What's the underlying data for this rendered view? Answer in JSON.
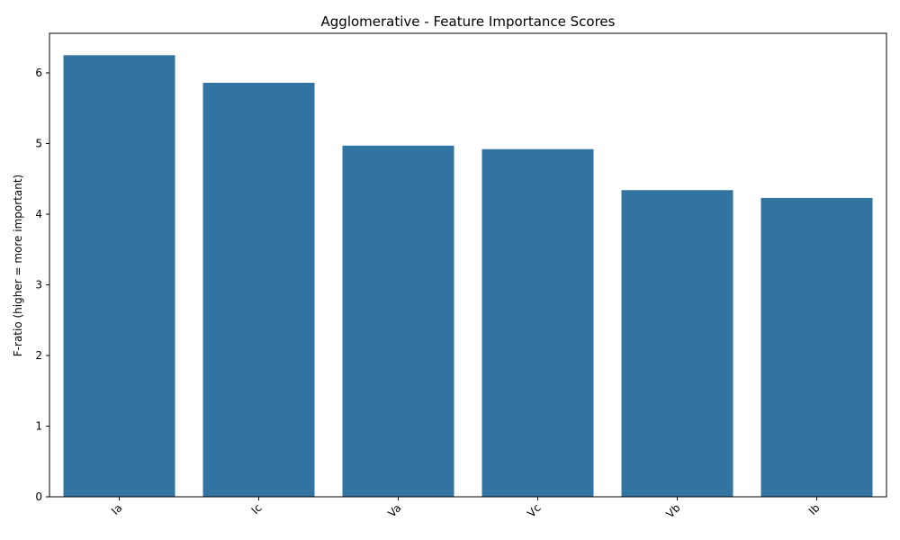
{
  "chart_data": {
    "type": "bar",
    "title": "Agglomerative - Feature Importance Scores",
    "xlabel": "",
    "ylabel": "F-ratio (higher = more important)",
    "categories": [
      "Ia",
      "Ic",
      "Va",
      "Vc",
      "Vb",
      "Ib"
    ],
    "values": [
      6.25,
      5.86,
      4.97,
      4.92,
      4.34,
      4.23
    ],
    "ylim": [
      0,
      6.56
    ],
    "yticks": [
      "0",
      "1",
      "2",
      "3",
      "4",
      "5",
      "6"
    ],
    "grid": false,
    "bar_color": "#3274a1"
  }
}
